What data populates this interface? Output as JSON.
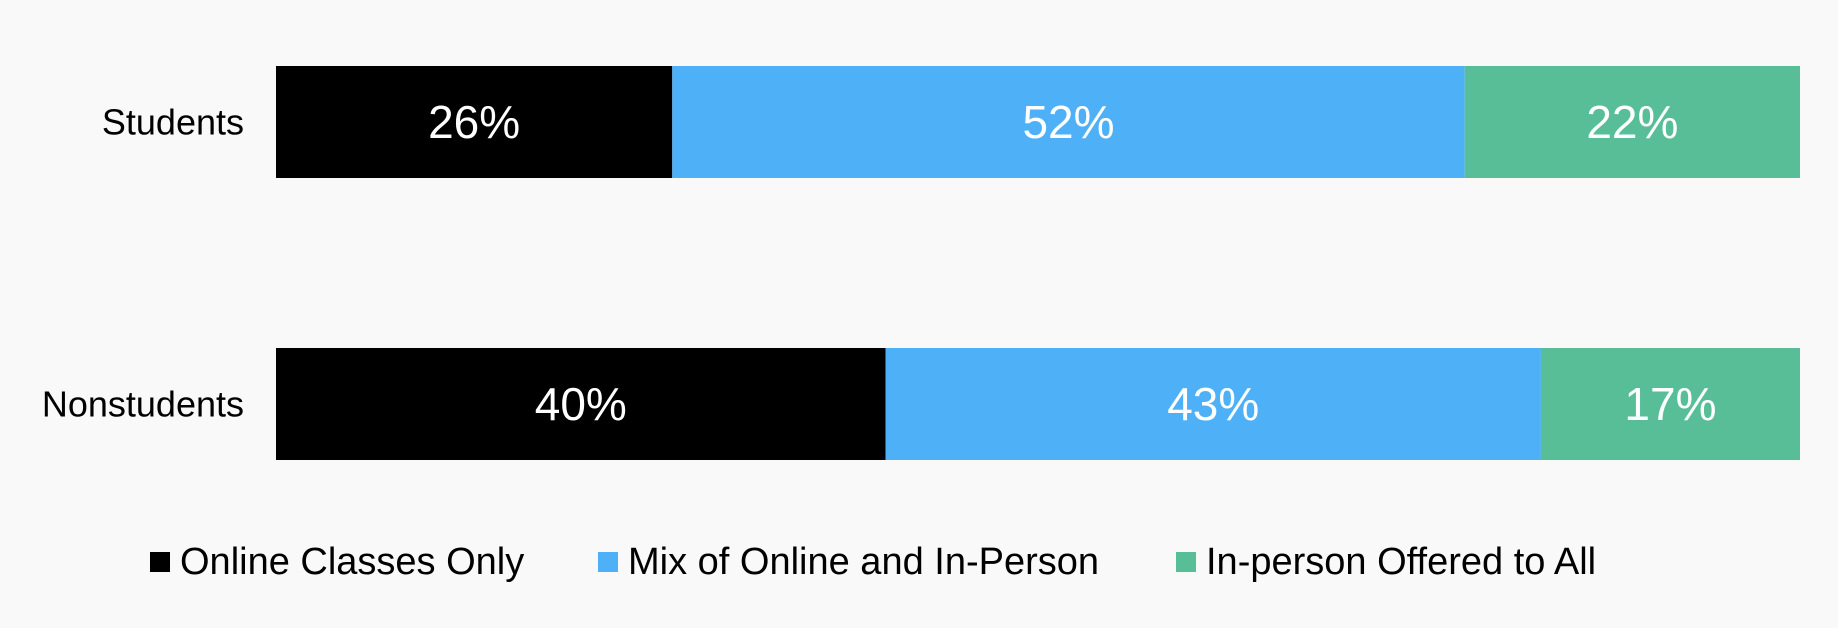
{
  "chart_data": {
    "type": "bar",
    "orientation": "horizontal",
    "stacked": true,
    "categories": [
      "Students",
      "Nonstudents"
    ],
    "series": [
      {
        "name": "Online Classes Only",
        "values": [
          26,
          40
        ],
        "labels": [
          "26%",
          "40%"
        ],
        "color": "#000000"
      },
      {
        "name": "Mix of Online and In-Person",
        "values": [
          52,
          43
        ],
        "labels": [
          "52%",
          "43%"
        ],
        "color": "#4EB0F6"
      },
      {
        "name": "In-person Offered to All",
        "values": [
          22,
          17
        ],
        "labels": [
          "22%",
          "17%"
        ],
        "color": "#57BE98"
      }
    ],
    "xlim": [
      0,
      100
    ],
    "legend_position": "bottom",
    "grid": false,
    "title": "",
    "xlabel": "",
    "ylabel": ""
  }
}
